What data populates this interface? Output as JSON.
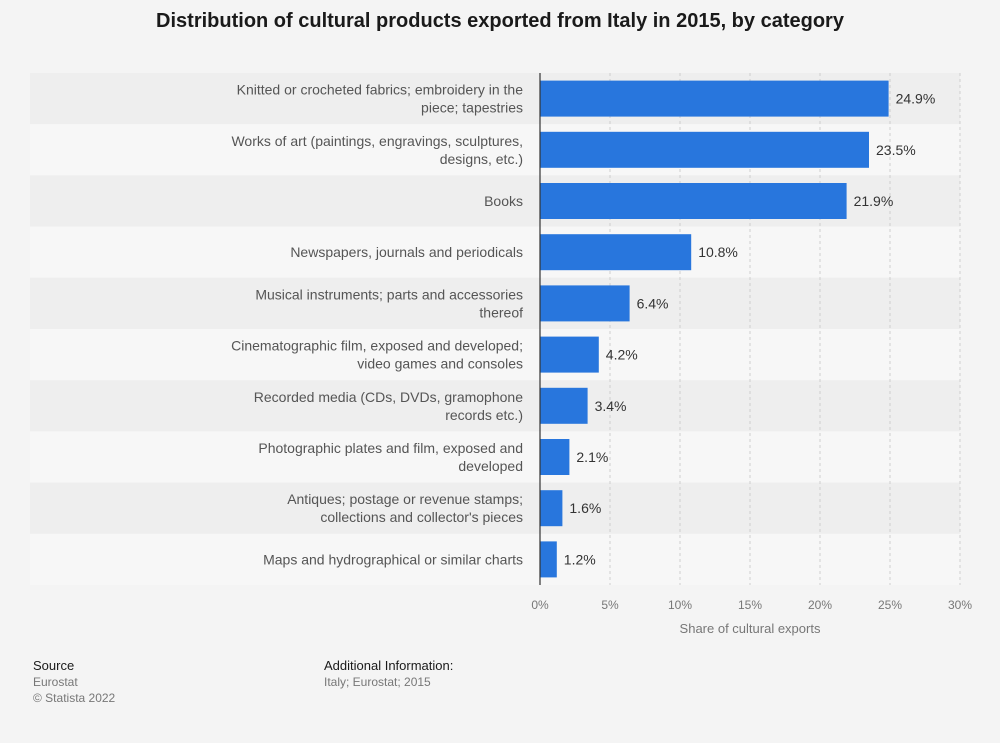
{
  "chart_data": {
    "type": "bar",
    "orientation": "horizontal",
    "title": "Distribution of cultural products exported from Italy in 2015, by category",
    "categories": [
      [
        "Knitted or crocheted fabrics; embroidery in the",
        "piece; tapestries"
      ],
      [
        "Works of art (paintings, engravings, sculptures,",
        "designs, etc.)"
      ],
      [
        "Books"
      ],
      [
        "Newspapers, journals and periodicals"
      ],
      [
        "Musical instruments; parts and accessories",
        "thereof"
      ],
      [
        "Cinematographic film, exposed and developed;",
        "video games and consoles"
      ],
      [
        "Recorded media (CDs, DVDs, gramophone",
        "records etc.)"
      ],
      [
        "Photographic plates and film, exposed and",
        "developed"
      ],
      [
        "Antiques; postage or revenue stamps;",
        "collections and collector's pieces"
      ],
      [
        "Maps and hydrographical or similar charts"
      ]
    ],
    "values": [
      24.9,
      23.5,
      21.9,
      10.8,
      6.4,
      4.2,
      3.4,
      2.1,
      1.6,
      1.2
    ],
    "value_labels": [
      "24.9%",
      "23.5%",
      "21.9%",
      "10.8%",
      "6.4%",
      "4.2%",
      "3.4%",
      "2.1%",
      "1.6%",
      "1.2%"
    ],
    "xlabel": "Share of cultural exports",
    "ylabel": "",
    "xlim": [
      0,
      30
    ],
    "ticks": [
      "0%",
      "5%",
      "10%",
      "15%",
      "20%",
      "25%",
      "30%"
    ],
    "tick_values": [
      0,
      5,
      10,
      15,
      20,
      25,
      30
    ],
    "grid": true,
    "bar_color": "#2876dd"
  },
  "footer": {
    "source_heading": "Source",
    "source_lines": [
      "Eurostat",
      "© Statista 2022"
    ],
    "info_heading": "Additional Information:",
    "info_text": "Italy; Eurostat; 2015"
  }
}
